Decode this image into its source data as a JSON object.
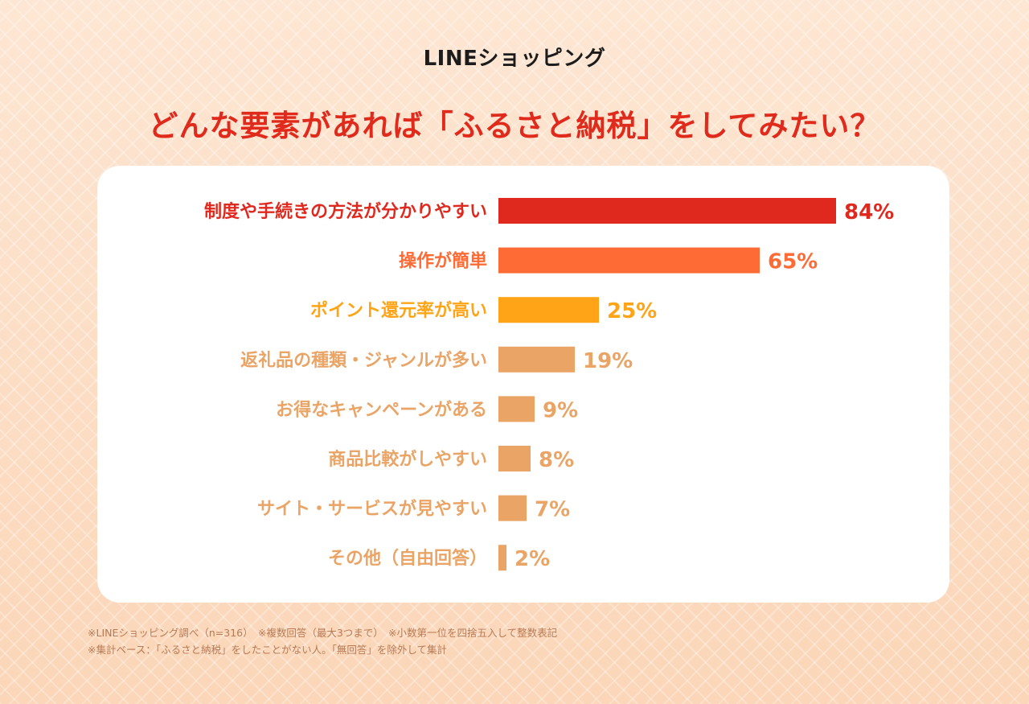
{
  "brand": {
    "logo_text": "LINEショッピング"
  },
  "chart_data": {
    "type": "bar",
    "orientation": "horizontal",
    "title": "どんな要素があれば「ふるさと納税」をしてみたい？",
    "categories": [
      "制度や手続きの方法が分かりやすい",
      "操作が簡単",
      "ポイント還元率が高い",
      "返礼品の種類・ジャンルが多い",
      "お得なキャンペーンがある",
      "商品比較がしやすい",
      "サイト・サービスが見やすい",
      "その他（自由回答）"
    ],
    "values": [
      84,
      65,
      25,
      19,
      9,
      8,
      7,
      2
    ],
    "value_suffix": "%",
    "colors": [
      "#e0291e",
      "#ff6b35",
      "#ffa416",
      "#e9a466",
      "#e9a466",
      "#e9a466",
      "#e9a466",
      "#e9a466"
    ],
    "xlim": [
      0,
      100
    ],
    "xlabel": "",
    "ylabel": ""
  },
  "footnotes": [
    "※LINEショッピング調べ（n=316）　※複数回答（最大3つまで）　※小数第一位を四捨五入して整数表記",
    "※集計ベース：「ふるさと納税」をしたことがない人。「無回答」を除外して集計"
  ]
}
